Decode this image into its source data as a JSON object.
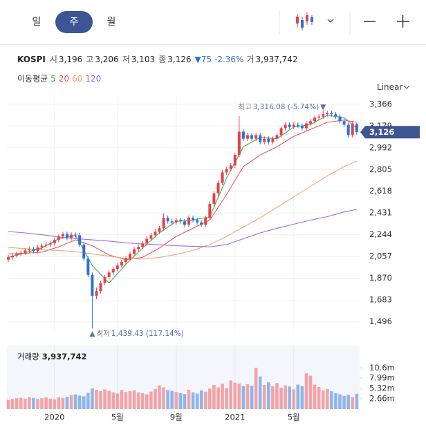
{
  "tabs": [
    "일",
    "주",
    "월"
  ],
  "active_tab": 1,
  "quote": {
    "symbol": "KOSPI",
    "fields": [
      {
        "label": "시",
        "value": "3,196"
      },
      {
        "label": "고",
        "value": "3,206"
      },
      {
        "label": "저",
        "value": "3,103"
      },
      {
        "label": "종",
        "value": "3,126"
      }
    ],
    "change": "▼75",
    "change_pct": "-2.36%",
    "volume_label": "거",
    "volume": "3,937,742"
  },
  "chart_data": {
    "type": "candlestick",
    "legend_title": "이동평균",
    "scale": "Linear",
    "categories": [
      null,
      null,
      null,
      null,
      null,
      null,
      null,
      null,
      null,
      null,
      null,
      "2020",
      null,
      null,
      null,
      null,
      null,
      null,
      null,
      null,
      null,
      null,
      null,
      null,
      null,
      null,
      "5월",
      null,
      null,
      null,
      null,
      null,
      null,
      null,
      null,
      null,
      null,
      null,
      null,
      null,
      "9월",
      null,
      null,
      null,
      null,
      null,
      null,
      null,
      null,
      null,
      null,
      null,
      null,
      null,
      "2021",
      null,
      null,
      null,
      null,
      null,
      null,
      null,
      null,
      null,
      null,
      null,
      null,
      null,
      "5월",
      null,
      null,
      null,
      null,
      null,
      null,
      null,
      null,
      null,
      null,
      null,
      null,
      null,
      null,
      null
    ],
    "open": [
      2030,
      2050,
      2065,
      2080,
      2090,
      2110,
      2120,
      2105,
      2135,
      2150,
      2160,
      2170,
      2200,
      2230,
      2250,
      2215,
      2245,
      2240,
      2160,
      2040,
      1900,
      1720,
      1760,
      1830,
      1880,
      1920,
      1950,
      1980,
      2010,
      2040,
      2080,
      2120,
      2140,
      2170,
      2210,
      2240,
      2270,
      2300,
      2390,
      2360,
      2350,
      2370,
      2360,
      2330,
      2390,
      2370,
      2350,
      2330,
      2390,
      2510,
      2600,
      2690,
      2780,
      2810,
      2840,
      2930,
      3130,
      3070,
      3100,
      3070,
      3100,
      3040,
      3070,
      3040,
      3070,
      3100,
      3160,
      3190,
      3170,
      3190,
      3180,
      3160,
      3200,
      3220,
      3250,
      3260,
      3280,
      3290,
      3280,
      3260,
      3220,
      3190,
      3100,
      3196
    ],
    "high": [
      2070,
      2085,
      2100,
      2110,
      2130,
      2140,
      2140,
      2155,
      2170,
      2180,
      2190,
      2220,
      2250,
      2270,
      2270,
      2265,
      2265,
      2260,
      2180,
      2060,
      1920,
      1790,
      1850,
      1900,
      1940,
      1970,
      2000,
      2030,
      2060,
      2100,
      2140,
      2160,
      2190,
      2230,
      2260,
      2290,
      2320,
      2430,
      2410,
      2380,
      2390,
      2390,
      2380,
      2410,
      2410,
      2390,
      2370,
      2410,
      2530,
      2620,
      2710,
      2800,
      2830,
      2860,
      2950,
      3266,
      3150,
      3120,
      3120,
      3120,
      3120,
      3090,
      3090,
      3090,
      3120,
      3180,
      3210,
      3210,
      3210,
      3210,
      3200,
      3220,
      3240,
      3270,
      3280,
      3316.08,
      3310,
      3310,
      3300,
      3280,
      3240,
      3210,
      3221,
      3206
    ],
    "low": [
      2010,
      2030,
      2045,
      2060,
      2070,
      2090,
      2085,
      2085,
      2115,
      2130,
      2140,
      2150,
      2180,
      2210,
      2195,
      2195,
      2220,
      2140,
      2020,
      1880,
      1439.43,
      1690,
      1740,
      1810,
      1860,
      1900,
      1930,
      1960,
      1990,
      2020,
      2060,
      2100,
      2120,
      2150,
      2190,
      2220,
      2250,
      2280,
      2340,
      2330,
      2330,
      2340,
      2310,
      2310,
      2350,
      2330,
      2310,
      2310,
      2370,
      2490,
      2580,
      2670,
      2760,
      2790,
      2820,
      2910,
      3050,
      3050,
      3050,
      3050,
      3020,
      3020,
      3020,
      3020,
      3050,
      3080,
      3140,
      3150,
      3150,
      3160,
      3140,
      3140,
      3180,
      3200,
      3230,
      3240,
      3260,
      3260,
      3240,
      3200,
      3170,
      3080,
      3080,
      3103
    ],
    "close": [
      2050,
      2065,
      2080,
      2090,
      2110,
      2120,
      2105,
      2135,
      2150,
      2160,
      2170,
      2200,
      2230,
      2250,
      2215,
      2245,
      2240,
      2160,
      2040,
      1900,
      1720,
      1760,
      1830,
      1880,
      1920,
      1950,
      1980,
      2010,
      2040,
      2080,
      2120,
      2140,
      2170,
      2210,
      2240,
      2270,
      2300,
      2390,
      2360,
      2350,
      2370,
      2360,
      2330,
      2390,
      2370,
      2350,
      2330,
      2390,
      2510,
      2600,
      2690,
      2780,
      2810,
      2840,
      2930,
      3130,
      3070,
      3100,
      3070,
      3100,
      3040,
      3070,
      3040,
      3070,
      3100,
      3160,
      3190,
      3170,
      3190,
      3180,
      3160,
      3200,
      3220,
      3250,
      3260,
      3280,
      3290,
      3280,
      3260,
      3220,
      3190,
      3100,
      3201,
      3126
    ],
    "up_color": "#e5414b",
    "down_color": "#2f6fd6",
    "last_price_label": "3,126",
    "ylim": [
      1420,
      3430
    ],
    "yticks": [
      {
        "value": 3366,
        "label": "3,366"
      },
      {
        "value": 3179,
        "label": "3,179"
      },
      {
        "value": 2992,
        "label": "2,992"
      },
      {
        "value": 2805,
        "label": "2,805"
      },
      {
        "value": 2618,
        "label": "2,618"
      },
      {
        "value": 2431,
        "label": "2,431"
      },
      {
        "value": 2244,
        "label": "2,244"
      },
      {
        "value": 2057,
        "label": "2,057"
      },
      {
        "value": 1870,
        "label": "1,870"
      },
      {
        "value": 1683,
        "label": "1,683"
      },
      {
        "value": 1496,
        "label": "1,496"
      }
    ],
    "grid": true,
    "series": [
      {
        "name": "5",
        "color": "#46ad4d",
        "x": [
          0,
          4,
          8,
          12,
          16,
          20,
          24,
          28,
          32,
          36,
          40,
          44,
          48,
          52,
          56,
          60,
          64,
          68,
          72,
          76,
          80,
          83
        ],
        "values": [
          2050,
          2090,
          2130,
          2210,
          2240,
          1980,
          1830,
          1990,
          2130,
          2260,
          2360,
          2370,
          2400,
          2730,
          3000,
          3080,
          3070,
          3170,
          3190,
          3270,
          3250,
          3160
        ]
      },
      {
        "name": "20",
        "color": "#e5575f",
        "x": [
          0,
          4,
          8,
          12,
          16,
          20,
          24,
          28,
          32,
          36,
          40,
          44,
          48,
          52,
          56,
          60,
          64,
          68,
          72,
          76,
          80,
          83
        ],
        "values": [
          2080,
          2085,
          2095,
          2140,
          2200,
          2150,
          2070,
          2030,
          2050,
          2130,
          2230,
          2300,
          2370,
          2590,
          2830,
          2930,
          3000,
          3090,
          3150,
          3210,
          3230,
          3210
        ]
      },
      {
        "name": "60",
        "color": "#f5a66c",
        "x": [
          0,
          4,
          8,
          12,
          16,
          20,
          24,
          28,
          32,
          36,
          40,
          44,
          48,
          52,
          56,
          60,
          64,
          68,
          72,
          76,
          80,
          83
        ],
        "values": [
          2135,
          2125,
          2115,
          2110,
          2100,
          2080,
          2060,
          2040,
          2035,
          2050,
          2075,
          2110,
          2160,
          2230,
          2310,
          2390,
          2480,
          2570,
          2660,
          2750,
          2830,
          2878
        ]
      },
      {
        "name": "120",
        "color": "#a067e6",
        "x": [
          0,
          4,
          8,
          12,
          16,
          20,
          24,
          28,
          32,
          36,
          40,
          44,
          48,
          52,
          56,
          60,
          64,
          68,
          72,
          76,
          80,
          83
        ],
        "values": [
          2272,
          2260,
          2245,
          2225,
          2212,
          2200,
          2190,
          2175,
          2165,
          2158,
          2150,
          2145,
          2140,
          2160,
          2210,
          2260,
          2300,
          2335,
          2370,
          2400,
          2440,
          2462
        ]
      }
    ],
    "annotations": {
      "high": {
        "label": "최고",
        "text": "3,316.08 (-5.74%)",
        "marker": "▼"
      },
      "low": {
        "label": "최저",
        "text": "1,439.43 (117.14%)",
        "marker": "▲"
      }
    },
    "volume": {
      "title": "거래량",
      "value_label": "3,937,742",
      "values": [
        2400000,
        2600000,
        2800000,
        2900000,
        2700000,
        3100000,
        2900000,
        2600000,
        2800000,
        3000000,
        2700000,
        2500000,
        3000000,
        2900000,
        3200000,
        3600000,
        3800000,
        3500000,
        3300000,
        4200000,
        5300000,
        4900000,
        4600000,
        5100000,
        4700000,
        4300000,
        4000000,
        4900000,
        4400000,
        4600000,
        4800000,
        4300000,
        4100000,
        3800000,
        4500000,
        5200000,
        6100000,
        5600000,
        4900000,
        4700000,
        4400000,
        4100000,
        3900000,
        5000000,
        4300000,
        4000000,
        4800000,
        4500000,
        5300000,
        6200000,
        5600000,
        6500000,
        5400000,
        7400000,
        6800000,
        6600000,
        5900000,
        6400000,
        6000000,
        10600000,
        8400000,
        6200000,
        6900000,
        5900000,
        6700000,
        5500000,
        6100000,
        5800000,
        5100000,
        6300000,
        5900000,
        9200000,
        8600000,
        6300000,
        5700000,
        4800000,
        5200000,
        4600000,
        4100000,
        3800000,
        3400000,
        3700000,
        3100000,
        3937742
      ],
      "up_color": "#f2a3a7",
      "down_color": "#8fb5ea",
      "ylim": [
        0,
        16350000
      ],
      "yticks": [
        {
          "value": 10600000,
          "label": "10.6m"
        },
        {
          "value": 7990000,
          "label": "7.99m"
        },
        {
          "value": 5320000,
          "label": "5.32m"
        },
        {
          "value": 2660000,
          "label": "2.66m"
        }
      ]
    }
  }
}
